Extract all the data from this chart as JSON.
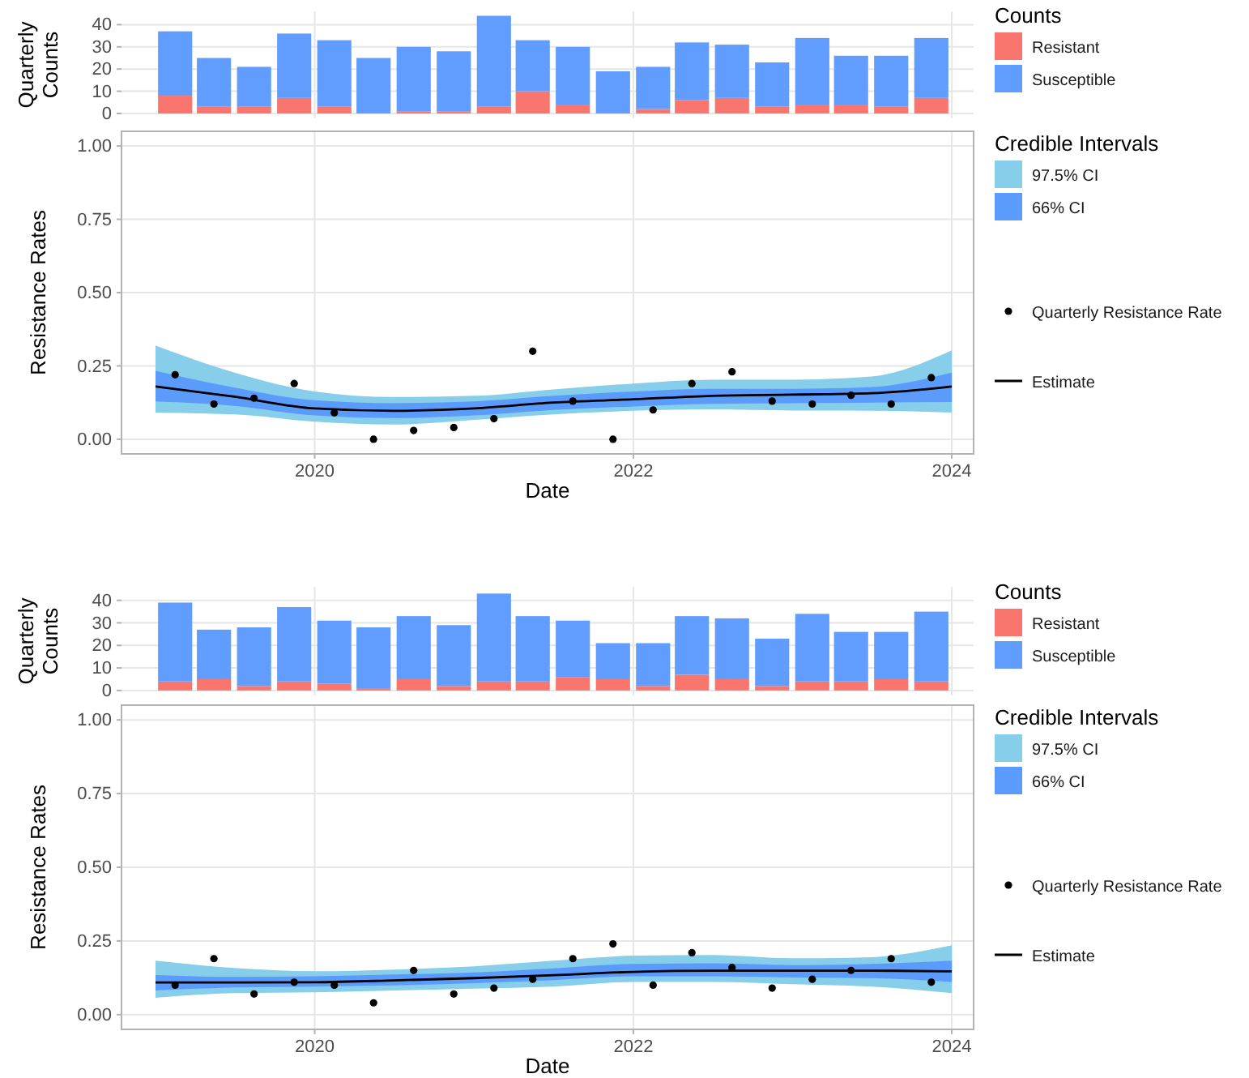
{
  "chart_data": [
    {
      "type": "bar",
      "stacked": true,
      "ylabel": "Quarterly Counts",
      "legend_title": "Counts",
      "legend": "right",
      "grid": true,
      "tick_labels": "y",
      "xlim": [
        "2018-10-15",
        "2024-02-20"
      ],
      "xticks": [
        "2020",
        "2022",
        "2024"
      ],
      "ylim": [
        -2.2,
        46
      ],
      "yticks": [
        0,
        10,
        20,
        30,
        40
      ],
      "x": [
        "2019-02-15",
        "2019-05-15",
        "2019-08-15",
        "2019-11-15",
        "2020-02-15",
        "2020-05-15",
        "2020-08-15",
        "2020-11-15",
        "2021-02-15",
        "2021-05-15",
        "2021-08-15",
        "2021-11-15",
        "2022-02-15",
        "2022-05-15",
        "2022-08-15",
        "2022-11-15",
        "2023-02-15",
        "2023-05-15",
        "2023-08-15",
        "2023-11-15"
      ],
      "series": [
        {
          "name": "Resistant",
          "color": "#f8766d",
          "values": [
            8,
            3,
            3,
            7,
            3,
            0,
            1,
            1,
            3,
            10,
            4,
            0,
            2,
            6,
            7,
            3,
            4,
            4,
            3,
            7
          ]
        },
        {
          "name": "Susceptible",
          "color": "#619cff",
          "values": [
            29,
            22,
            18,
            29,
            30,
            25,
            29,
            27,
            41,
            23,
            26,
            19,
            19,
            26,
            24,
            20,
            30,
            22,
            23,
            27
          ]
        }
      ]
    },
    {
      "type": "line",
      "xlabel": "Date",
      "ylabel": "Resistance Rates",
      "legend_title": "Credible Intervals",
      "legend": "right",
      "grid": true,
      "xlim": [
        "2018-10-15",
        "2024-02-20"
      ],
      "xticks": [
        "2020",
        "2022",
        "2024"
      ],
      "ylim": [
        -0.05,
        1.05
      ],
      "yticks": [
        {
          "value": 0,
          "label": "0.00"
        },
        {
          "value": 0.25,
          "label": "0.25"
        },
        {
          "value": 0.5,
          "label": "0.50"
        },
        {
          "value": 0.75,
          "label": "0.75"
        },
        {
          "value": 1,
          "label": "1.00"
        }
      ],
      "series": [
        {
          "name": "97.5% CI",
          "type": "area",
          "color": "#87ceeb",
          "x": [
            "2019-01-01",
            "2019-07-01",
            "2020-01-01",
            "2020-07-01",
            "2021-01-01",
            "2021-07-01",
            "2022-01-01",
            "2022-07-01",
            "2023-01-01",
            "2023-07-01",
            "2024-01-01"
          ],
          "values": [
            null,
            null,
            null,
            null,
            null,
            null,
            null,
            null,
            null,
            null,
            null
          ],
          "lower": [
            0.09,
            0.085,
            0.06,
            0.05,
            0.066,
            0.085,
            0.097,
            0.102,
            0.098,
            0.097,
            0.091
          ],
          "upper": [
            0.32,
            0.227,
            0.163,
            0.144,
            0.148,
            0.17,
            0.19,
            0.203,
            0.203,
            0.214,
            0.303
          ]
        },
        {
          "name": "66% CI",
          "type": "area",
          "color": "#5b9bfb",
          "x": [
            "2019-01-01",
            "2019-07-01",
            "2020-01-01",
            "2020-07-01",
            "2021-01-01",
            "2021-07-01",
            "2022-01-01",
            "2022-07-01",
            "2023-01-01",
            "2023-07-01",
            "2024-01-01"
          ],
          "values": [
            null,
            null,
            null,
            null,
            null,
            null,
            null,
            null,
            null,
            null,
            null
          ],
          "lower": [
            0.129,
            0.114,
            0.081,
            0.072,
            0.081,
            0.1,
            0.112,
            0.121,
            0.123,
            0.125,
            0.127
          ],
          "upper": [
            0.233,
            0.176,
            0.133,
            0.123,
            0.129,
            0.148,
            0.163,
            0.172,
            0.172,
            0.178,
            0.227
          ]
        },
        {
          "name": "Quarterly Resistance Rate",
          "type": "scatter",
          "color": "#000000",
          "x": [
            "2019-02-15",
            "2019-05-15",
            "2019-08-15",
            "2019-11-15",
            "2020-02-15",
            "2020-05-15",
            "2020-08-15",
            "2020-11-15",
            "2021-02-15",
            "2021-05-15",
            "2021-08-15",
            "2021-11-15",
            "2022-02-15",
            "2022-05-15",
            "2022-08-15",
            "2022-11-15",
            "2023-02-15",
            "2023-05-15",
            "2023-08-15",
            "2023-11-15"
          ],
          "values": [
            0.22,
            0.12,
            0.14,
            0.19,
            0.09,
            0,
            0.03,
            0.04,
            0.07,
            0.3,
            0.13,
            0,
            0.1,
            0.19,
            0.23,
            0.13,
            0.12,
            0.15,
            0.12,
            0.21
          ]
        },
        {
          "name": "Estimate",
          "type": "line",
          "color": "#000000",
          "x": [
            "2019-01-01",
            "2019-07-01",
            "2020-01-01",
            "2020-07-01",
            "2021-01-01",
            "2021-07-01",
            "2022-01-01",
            "2022-07-01",
            "2023-01-01",
            "2023-07-01",
            "2024-01-01"
          ],
          "values": [
            0.18,
            0.145,
            0.105,
            0.097,
            0.105,
            0.125,
            0.136,
            0.148,
            0.152,
            0.157,
            0.18
          ]
        }
      ]
    },
    {
      "type": "bar",
      "stacked": true,
      "ylabel": "Quarterly Counts",
      "legend_title": "Counts",
      "legend": "right",
      "grid": true,
      "tick_labels": "y",
      "xlim": [
        "2018-10-15",
        "2024-02-20"
      ],
      "xticks": [
        "2020",
        "2022",
        "2024"
      ],
      "ylim": [
        -2.2,
        46
      ],
      "yticks": [
        0,
        10,
        20,
        30,
        40
      ],
      "x": [
        "2019-02-15",
        "2019-05-15",
        "2019-08-15",
        "2019-11-15",
        "2020-02-15",
        "2020-05-15",
        "2020-08-15",
        "2020-11-15",
        "2021-02-15",
        "2021-05-15",
        "2021-08-15",
        "2021-11-15",
        "2022-02-15",
        "2022-05-15",
        "2022-08-15",
        "2022-11-15",
        "2023-02-15",
        "2023-05-15",
        "2023-08-15",
        "2023-11-15"
      ],
      "series": [
        {
          "name": "Resistant",
          "color": "#f8766d",
          "values": [
            4,
            5,
            2,
            4,
            3,
            1,
            5,
            2,
            4,
            4,
            6,
            5,
            2,
            7,
            5,
            2,
            4,
            4,
            5,
            4
          ]
        },
        {
          "name": "Susceptible",
          "color": "#619cff",
          "values": [
            35,
            22,
            26,
            33,
            28,
            27,
            28,
            27,
            39,
            29,
            25,
            16,
            19,
            26,
            27,
            21,
            30,
            22,
            21,
            31
          ]
        }
      ]
    },
    {
      "type": "line",
      "xlabel": "Date",
      "ylabel": "Resistance Rates",
      "legend_title": "Credible Intervals",
      "legend": "right",
      "grid": true,
      "xlim": [
        "2018-10-15",
        "2024-02-20"
      ],
      "xticks": [
        "2020",
        "2022",
        "2024"
      ],
      "ylim": [
        -0.05,
        1.05
      ],
      "yticks": [
        {
          "value": 0,
          "label": "0.00"
        },
        {
          "value": 0.25,
          "label": "0.25"
        },
        {
          "value": 0.5,
          "label": "0.50"
        },
        {
          "value": 0.75,
          "label": "0.75"
        },
        {
          "value": 1,
          "label": "1.00"
        }
      ],
      "series": [
        {
          "name": "97.5% CI",
          "type": "area",
          "color": "#87ceeb",
          "x": [
            "2019-01-01",
            "2019-07-01",
            "2020-01-01",
            "2020-07-01",
            "2021-01-01",
            "2021-07-01",
            "2022-01-01",
            "2022-07-01",
            "2023-01-01",
            "2023-07-01",
            "2024-01-01"
          ],
          "values": [
            null,
            null,
            null,
            null,
            null,
            null,
            null,
            null,
            null,
            null,
            null
          ],
          "lower": [
            0.057,
            0.073,
            0.076,
            0.082,
            0.088,
            0.095,
            0.111,
            0.111,
            0.103,
            0.095,
            0.073
          ],
          "upper": [
            0.183,
            0.158,
            0.147,
            0.153,
            0.164,
            0.183,
            0.2,
            0.202,
            0.191,
            0.195,
            0.235
          ]
        },
        {
          "name": "66% CI",
          "type": "area",
          "color": "#5b9bfb",
          "x": [
            "2019-01-01",
            "2019-07-01",
            "2020-01-01",
            "2020-07-01",
            "2021-01-01",
            "2021-07-01",
            "2022-01-01",
            "2022-07-01",
            "2023-01-01",
            "2023-07-01",
            "2024-01-01"
          ],
          "values": [
            null,
            null,
            null,
            null,
            null,
            null,
            null,
            null,
            null,
            null,
            null
          ],
          "lower": [
            0.082,
            0.092,
            0.095,
            0.099,
            0.107,
            0.117,
            0.13,
            0.13,
            0.126,
            0.124,
            0.111
          ],
          "upper": [
            0.134,
            0.128,
            0.13,
            0.136,
            0.143,
            0.157,
            0.172,
            0.174,
            0.168,
            0.172,
            0.183
          ]
        },
        {
          "name": "Quarterly Resistance Rate",
          "type": "scatter",
          "color": "#000000",
          "x": [
            "2019-02-15",
            "2019-05-15",
            "2019-08-15",
            "2019-11-15",
            "2020-02-15",
            "2020-05-15",
            "2020-08-15",
            "2020-11-15",
            "2021-02-15",
            "2021-05-15",
            "2021-08-15",
            "2021-11-15",
            "2022-02-15",
            "2022-05-15",
            "2022-08-15",
            "2022-11-15",
            "2023-02-15",
            "2023-05-15",
            "2023-08-15",
            "2023-11-15"
          ],
          "values": [
            0.1,
            0.19,
            0.07,
            0.11,
            0.1,
            0.04,
            0.15,
            0.07,
            0.09,
            0.12,
            0.19,
            0.24,
            0.1,
            0.21,
            0.16,
            0.09,
            0.12,
            0.15,
            0.19,
            0.11
          ]
        },
        {
          "name": "Estimate",
          "type": "line",
          "color": "#000000",
          "x": [
            "2019-01-01",
            "2019-07-01",
            "2020-01-01",
            "2020-07-01",
            "2021-01-01",
            "2021-07-01",
            "2022-01-01",
            "2022-07-01",
            "2023-01-01",
            "2023-07-01",
            "2024-01-01"
          ],
          "values": [
            0.109,
            0.109,
            0.11,
            0.116,
            0.124,
            0.134,
            0.145,
            0.149,
            0.149,
            0.149,
            0.147
          ]
        }
      ]
    }
  ]
}
